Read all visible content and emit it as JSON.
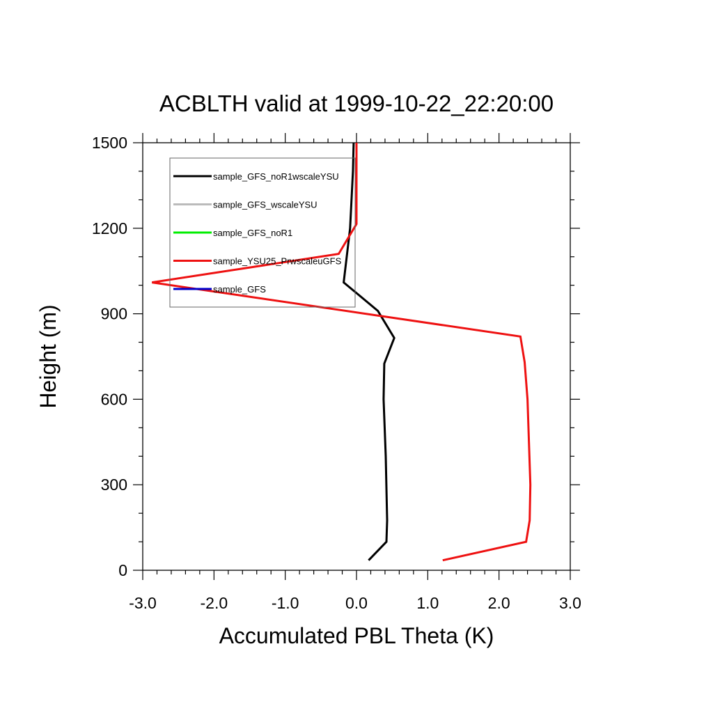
{
  "chart_data": {
    "type": "line",
    "title": "ACBLTH valid at 1999-10-22_22:20:00",
    "xlabel": "Accumulated PBL Theta (K)",
    "ylabel": "Height (m)",
    "xlim": [
      -3.0,
      3.0
    ],
    "ylim": [
      0,
      1500
    ],
    "xticks": [
      -3.0,
      -2.0,
      -1.0,
      0.0,
      1.0,
      2.0,
      3.0
    ],
    "xtick_labels": [
      "-3.0",
      "-2.0",
      "-1.0",
      "0.0",
      "1.0",
      "2.0",
      "3.0"
    ],
    "yticks": [
      0,
      300,
      600,
      900,
      1200,
      1500
    ],
    "ytick_labels": [
      "0",
      "300",
      "600",
      "900",
      "1200",
      "1500"
    ],
    "grid": false,
    "legend_position": "top-left",
    "series": [
      {
        "name": "sample_GFS_noR1wscaleYSU",
        "color": "#000000",
        "points": [
          [
            0.17,
            35
          ],
          [
            0.42,
            100
          ],
          [
            0.43,
            175
          ],
          [
            0.41,
            400
          ],
          [
            0.38,
            600
          ],
          [
            0.39,
            725
          ],
          [
            0.53,
            815
          ],
          [
            0.3,
            910
          ],
          [
            -0.18,
            1010
          ],
          [
            -0.09,
            1200
          ],
          [
            -0.05,
            1400
          ],
          [
            -0.04,
            1500
          ]
        ]
      },
      {
        "name": "sample_GFS_wscaleYSU",
        "color": "#bbbbbb",
        "points": []
      },
      {
        "name": "sample_GFS_noR1",
        "color": "#00ee00",
        "points": []
      },
      {
        "name": "sample_YSU25_PrwscaleuGFS",
        "color": "#ee1111",
        "points": [
          [
            1.21,
            35
          ],
          [
            2.38,
            100
          ],
          [
            2.43,
            175
          ],
          [
            2.44,
            300
          ],
          [
            2.4,
            600
          ],
          [
            2.36,
            730
          ],
          [
            2.3,
            820
          ],
          [
            -2.87,
            1010
          ],
          [
            -0.25,
            1110
          ],
          [
            0.0,
            1215
          ],
          [
            0.0,
            1500
          ]
        ]
      },
      {
        "name": "sample_GFS",
        "color": "#0000cc",
        "points": []
      }
    ]
  }
}
